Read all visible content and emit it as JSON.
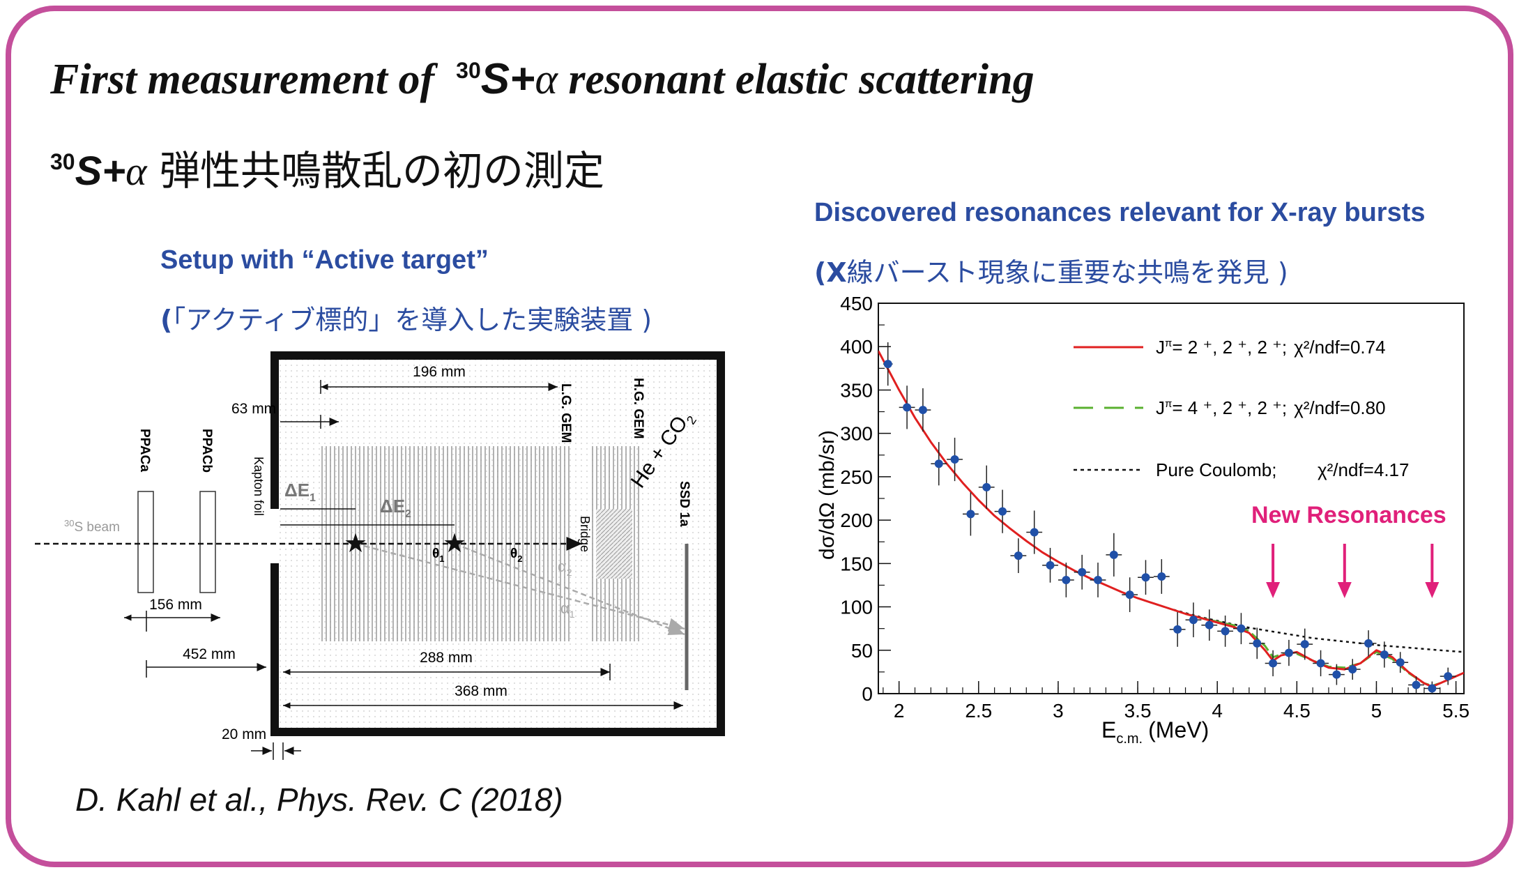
{
  "title": {
    "prefix": "First measurement of",
    "sup": "30",
    "nucleus": "S+",
    "alpha": "α",
    "suffix": "resonant elastic scattering"
  },
  "subtitle_ja": {
    "sup": "30",
    "nucleus": "S+",
    "alpha": "α",
    "text": "弾性共鳴散乱の初の測定"
  },
  "setup": {
    "heading": "Setup with “Active target”",
    "heading_ja_open": "(",
    "heading_ja": "「アクティブ標的」を導入した実験装置 )",
    "diagram": {
      "beam_sup": "30",
      "beam_label": "S beam",
      "ppaca": "PPACa",
      "ppacb": "PPACb",
      "kapton": "Kapton foil",
      "dim_63": "63 mm",
      "dim_196": "196 mm",
      "dim_156": "156 mm",
      "dim_452": "452 mm",
      "dim_288": "288 mm",
      "dim_368": "368 mm",
      "dim_20": "20 mm",
      "lg_gem": "L.G. GEM",
      "hg_gem": "H.G. GEM",
      "gas": "He + CO",
      "gas_sub": "2",
      "ssd": "SSD 1a",
      "bridge": "Bridge",
      "de1": "ΔE",
      "de1_sub": "1",
      "de2": "ΔE",
      "de2_sub": "2",
      "theta1": "θ",
      "theta1_sub": "1",
      "theta2": "θ",
      "theta2_sub": "2",
      "alpha1": "α",
      "alpha1_sub": "1",
      "alpha2": "α",
      "alpha2_sub": "2"
    }
  },
  "discovered": {
    "heading": "Discovered resonances relevant for X-ray bursts",
    "heading_ja_open": "(X",
    "heading_ja": "線バースト現象に重要な共鳴を発見 )"
  },
  "citation": "D. Kahl et al., Phys. Rev. C (2018)",
  "colors": {
    "frame": "#c44f9b",
    "heading_blue": "#2b4ca0",
    "fit_red": "#e02020",
    "fit_green": "#5ab030",
    "data_blue": "#2050a8",
    "annotation_magenta": "#e0207a"
  },
  "chart_data": {
    "type": "scatter",
    "xlabel": "E",
    "xlabel_sub": "c.m.",
    "xlabel_unit": "(MeV)",
    "ylabel": "dσ/dΩ (mb/sr)",
    "xlim": [
      1.87,
      5.55
    ],
    "ylim": [
      0,
      450
    ],
    "xticks": [
      2,
      2.5,
      3,
      3.5,
      4,
      4.5,
      5,
      5.5
    ],
    "xtick_labels": [
      "2",
      "2.5",
      "3",
      "3.5",
      "4",
      "4.5",
      "5",
      "5.5"
    ],
    "yticks": [
      0,
      50,
      100,
      150,
      200,
      250,
      300,
      350,
      400,
      450
    ],
    "ytick_labels": [
      "0",
      "50",
      "100",
      "150",
      "200",
      "250",
      "300",
      "350",
      "400",
      "450"
    ],
    "legend": {
      "red_jpi": "J",
      "red_pi": "π",
      "red_values": "= 2 ⁺, 2 ⁺, 2 ⁺;",
      "red_chi": "χ²/ndf=0.74",
      "green_jpi": "J",
      "green_pi": "π",
      "green_values": "= 4 ⁺, 2 ⁺, 2 ⁺;",
      "green_chi": "χ²/ndf=0.80",
      "black_label": "Pure Coulomb;",
      "black_chi": "χ²/ndf=4.17"
    },
    "annotation": "New Resonances",
    "annotation_arrows_x": [
      4.35,
      4.8,
      5.35
    ],
    "points": [
      {
        "x": 1.93,
        "y": 380,
        "ey": 25,
        "ex": 0.03
      },
      {
        "x": 2.05,
        "y": 330,
        "ey": 25,
        "ex": 0.05
      },
      {
        "x": 2.15,
        "y": 327,
        "ey": 25,
        "ex": 0.05
      },
      {
        "x": 2.25,
        "y": 265,
        "ey": 25,
        "ex": 0.05
      },
      {
        "x": 2.35,
        "y": 270,
        "ey": 25,
        "ex": 0.05
      },
      {
        "x": 2.45,
        "y": 207,
        "ey": 25,
        "ex": 0.05
      },
      {
        "x": 2.55,
        "y": 238,
        "ey": 25,
        "ex": 0.05
      },
      {
        "x": 2.65,
        "y": 210,
        "ey": 25,
        "ex": 0.05
      },
      {
        "x": 2.75,
        "y": 159,
        "ey": 20,
        "ex": 0.05
      },
      {
        "x": 2.85,
        "y": 186,
        "ey": 25,
        "ex": 0.05
      },
      {
        "x": 2.95,
        "y": 148,
        "ey": 20,
        "ex": 0.05
      },
      {
        "x": 3.05,
        "y": 131,
        "ey": 20,
        "ex": 0.05
      },
      {
        "x": 3.15,
        "y": 140,
        "ey": 20,
        "ex": 0.05
      },
      {
        "x": 3.25,
        "y": 131,
        "ey": 20,
        "ex": 0.05
      },
      {
        "x": 3.35,
        "y": 160,
        "ey": 25,
        "ex": 0.05
      },
      {
        "x": 3.45,
        "y": 114,
        "ey": 20,
        "ex": 0.05
      },
      {
        "x": 3.55,
        "y": 134,
        "ey": 20,
        "ex": 0.05
      },
      {
        "x": 3.65,
        "y": 135,
        "ey": 20,
        "ex": 0.05
      },
      {
        "x": 3.75,
        "y": 74,
        "ey": 20,
        "ex": 0.05
      },
      {
        "x": 3.85,
        "y": 85,
        "ey": 20,
        "ex": 0.05
      },
      {
        "x": 3.95,
        "y": 79,
        "ey": 18,
        "ex": 0.05
      },
      {
        "x": 4.05,
        "y": 72,
        "ey": 18,
        "ex": 0.05
      },
      {
        "x": 4.15,
        "y": 75,
        "ey": 18,
        "ex": 0.05
      },
      {
        "x": 4.25,
        "y": 58,
        "ey": 18,
        "ex": 0.05
      },
      {
        "x": 4.35,
        "y": 35,
        "ey": 15,
        "ex": 0.05
      },
      {
        "x": 4.45,
        "y": 47,
        "ey": 15,
        "ex": 0.05
      },
      {
        "x": 4.55,
        "y": 57,
        "ey": 18,
        "ex": 0.05
      },
      {
        "x": 4.65,
        "y": 35,
        "ey": 15,
        "ex": 0.05
      },
      {
        "x": 4.75,
        "y": 22,
        "ey": 12,
        "ex": 0.05
      },
      {
        "x": 4.85,
        "y": 28,
        "ey": 12,
        "ex": 0.05
      },
      {
        "x": 4.95,
        "y": 58,
        "ey": 15,
        "ex": 0.05
      },
      {
        "x": 5.05,
        "y": 45,
        "ey": 15,
        "ex": 0.05
      },
      {
        "x": 5.15,
        "y": 36,
        "ey": 12,
        "ex": 0.05
      },
      {
        "x": 5.25,
        "y": 10,
        "ey": 10,
        "ex": 0.05
      },
      {
        "x": 5.35,
        "y": 6,
        "ey": 8,
        "ex": 0.05
      },
      {
        "x": 5.45,
        "y": 20,
        "ey": 10,
        "ex": 0.05
      }
    ],
    "series": [
      {
        "style": "red-solid",
        "x": [
          1.87,
          2.0,
          2.1,
          2.2,
          2.3,
          2.4,
          2.5,
          2.6,
          2.7,
          2.8,
          2.9,
          3.0,
          3.1,
          3.2,
          3.3,
          3.4,
          3.5,
          3.6,
          3.7,
          3.8,
          3.9,
          4.0,
          4.1,
          4.2,
          4.3,
          4.35,
          4.4,
          4.5,
          4.6,
          4.7,
          4.8,
          4.9,
          5.0,
          5.1,
          5.2,
          5.3,
          5.35,
          5.4,
          5.5,
          5.55
        ],
        "y": [
          395,
          350,
          318,
          290,
          265,
          243,
          223,
          205,
          190,
          176,
          163,
          152,
          142,
          133,
          125,
          117,
          110,
          104,
          98,
          92,
          87,
          82,
          77,
          70,
          50,
          38,
          44,
          48,
          38,
          30,
          28,
          35,
          50,
          42,
          25,
          12,
          8,
          12,
          20,
          24
        ]
      },
      {
        "style": "green-dashed",
        "x": [
          3.8,
          3.9,
          4.0,
          4.1,
          4.2,
          4.3,
          4.35,
          4.4,
          4.5,
          4.6,
          4.7,
          4.8,
          4.9,
          5.0,
          5.1,
          5.2,
          5.3,
          5.35,
          5.4
        ],
        "y": [
          92,
          87,
          83,
          79,
          72,
          55,
          42,
          45,
          46,
          38,
          31,
          30,
          35,
          48,
          40,
          24,
          12,
          9,
          12
        ]
      },
      {
        "style": "black-dotted",
        "x": [
          3.5,
          3.6,
          3.7,
          3.8,
          3.9,
          4.0,
          4.2,
          4.4,
          4.6,
          4.8,
          5.0,
          5.2,
          5.4,
          5.55
        ],
        "y": [
          110,
          104,
          98,
          93,
          88,
          84,
          76,
          70,
          64,
          60,
          56,
          53,
          50,
          48
        ]
      }
    ]
  }
}
